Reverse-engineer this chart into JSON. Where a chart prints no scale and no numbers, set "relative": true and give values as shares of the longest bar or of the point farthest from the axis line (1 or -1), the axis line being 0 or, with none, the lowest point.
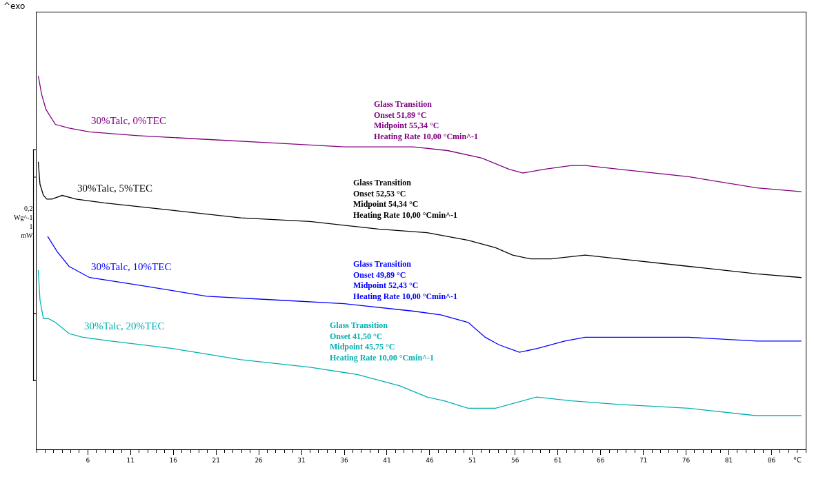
{
  "chart_data": {
    "type": "line",
    "relative": true,
    "xlabel": "°C",
    "xlim": [
      0,
      90
    ],
    "xticks": [
      6,
      11,
      16,
      21,
      26,
      31,
      36,
      41,
      46,
      51,
      56,
      61,
      66,
      71,
      76,
      81,
      86
    ],
    "legend": false,
    "marker": "none",
    "line_style": "solid",
    "series": [
      {
        "name": "30%Talc, 0%TEC",
        "color": "#800080",
        "x": [
          0.2,
          0.6,
          1.1,
          2.2,
          3.8,
          6.2,
          11.9,
          19.9,
          28.0,
          36.0,
          44.1,
          48.1,
          52.1,
          55.3,
          56.9,
          59.4,
          62.6,
          64.2,
          68.2,
          76.3,
          84.3,
          89.5
        ],
        "values": [
          1.0,
          0.95,
          0.91,
          0.87,
          0.86,
          0.85,
          0.84,
          0.83,
          0.82,
          0.81,
          0.81,
          0.8,
          0.78,
          0.75,
          0.74,
          0.75,
          0.76,
          0.76,
          0.75,
          0.73,
          0.7,
          0.69
        ]
      },
      {
        "name": "30%Talc, 5%TEC",
        "color": "#000000",
        "x": [
          0.2,
          0.4,
          0.8,
          1.2,
          1.8,
          3.0,
          4.6,
          7.9,
          15.9,
          23.9,
          32.0,
          40.0,
          45.7,
          50.5,
          53.7,
          55.7,
          57.8,
          60.2,
          64.2,
          68.2,
          76.3,
          84.3,
          89.5
        ],
        "values": [
          0.77,
          0.71,
          0.68,
          0.67,
          0.67,
          0.68,
          0.67,
          0.66,
          0.64,
          0.62,
          0.61,
          0.59,
          0.58,
          0.56,
          0.54,
          0.52,
          0.51,
          0.51,
          0.52,
          0.51,
          0.49,
          0.47,
          0.46
        ]
      },
      {
        "name": "30%Talc, 10%TEC",
        "color": "#0000ff",
        "x": [
          1.3,
          2.4,
          3.8,
          6.2,
          11.9,
          19.9,
          28.0,
          36.0,
          44.1,
          47.3,
          50.5,
          52.5,
          54.1,
          56.5,
          58.6,
          61.8,
          64.2,
          68.2,
          76.3,
          84.3,
          89.5
        ],
        "values": [
          0.57,
          0.53,
          0.49,
          0.46,
          0.44,
          0.41,
          0.4,
          0.39,
          0.37,
          0.36,
          0.34,
          0.3,
          0.28,
          0.26,
          0.27,
          0.29,
          0.3,
          0.3,
          0.3,
          0.29,
          0.29
        ]
      },
      {
        "name": "30%Talc, 20%TEC",
        "color": "#00b0b0",
        "x": [
          0.2,
          0.4,
          0.8,
          1.4,
          2.2,
          3.8,
          5.4,
          8.7,
          15.9,
          23.9,
          32.0,
          37.6,
          42.5,
          45.7,
          47.7,
          50.5,
          53.7,
          58.5,
          62.6,
          68.2,
          76.3,
          84.3,
          89.5
        ],
        "values": [
          0.48,
          0.4,
          0.35,
          0.35,
          0.34,
          0.31,
          0.3,
          0.29,
          0.27,
          0.24,
          0.22,
          0.2,
          0.17,
          0.14,
          0.13,
          0.11,
          0.11,
          0.14,
          0.13,
          0.12,
          0.11,
          0.09,
          0.09
        ]
      }
    ],
    "annotations": [
      "^exo",
      "0,2\nWg^-1\n1\nmW",
      "Glass Transition\nOnset 51,89 °C\nMidpoint 55,34 °C\nHeating Rate 10,00 °Cmin^-1",
      "Glass Transition\nOnset 52,53 °C\nMidpoint 54,34 °C\nHeating Rate 10,00 °Cmin^-1",
      "Glass Transition\nOnset 49,89 °C\nMidpoint 52,43 °C\nHeating Rate 10,00 °Cmin^-1",
      "Glass Transition\nOnset 41,50 °C\nMidpoint 45,75 °C\nHeating Rate 10,00 °Cmin^-1"
    ]
  }
}
